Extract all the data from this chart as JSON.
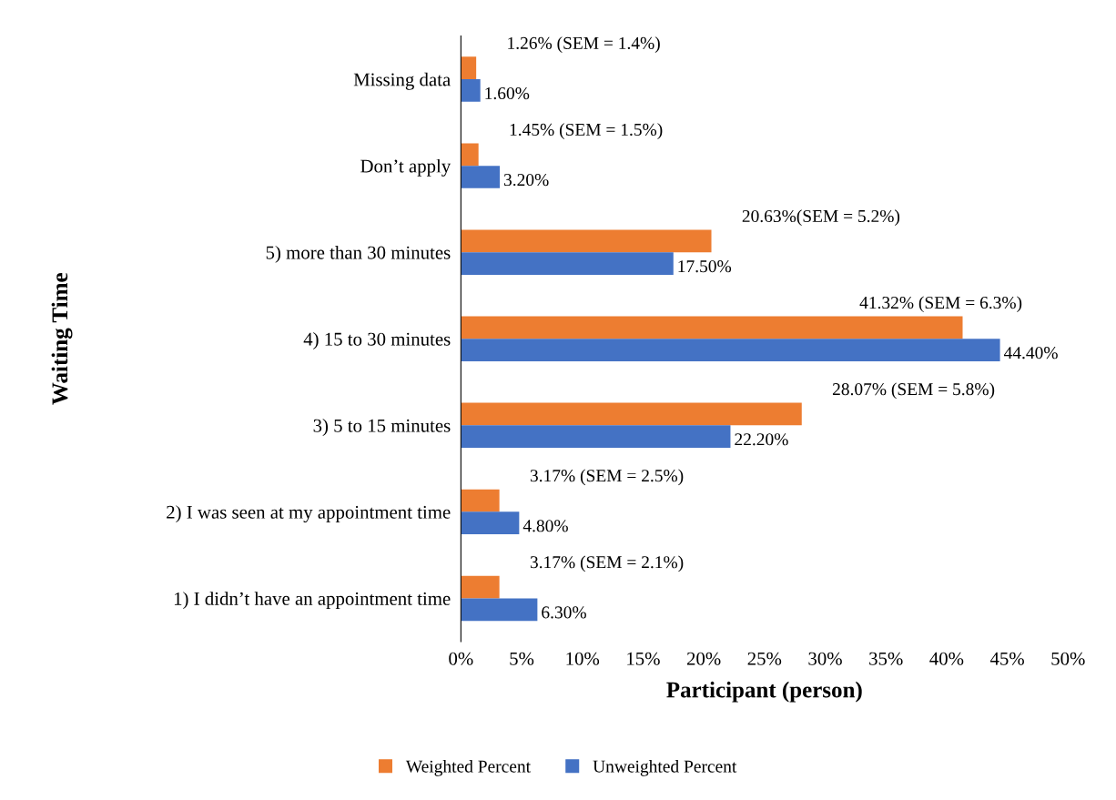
{
  "chart_data": {
    "type": "bar",
    "orientation": "horizontal",
    "xlabel": "Participant (person)",
    "ylabel": "Waiting Time",
    "categories": [
      "Missing data",
      "Don’t apply",
      "5) more than 30 minutes",
      "4) 15 to 30 minutes",
      "3) 5 to 15 minutes",
      "2) I was seen at my appointment time",
      "1) I didn’t have an appointment time"
    ],
    "series": [
      {
        "name": "Weighted Percent",
        "color": "#ed7d31",
        "values": [
          1.26,
          1.45,
          20.63,
          41.32,
          28.07,
          3.17,
          3.17
        ],
        "value_labels": [
          "1.26% (SEM = 1.4%)",
          "1.45% (SEM = 1.5%)",
          "20.63%(SEM = 5.2%)",
          "41.32% (SEM = 6.3%)",
          "28.07% (SEM = 5.8%)",
          "3.17% (SEM = 2.5%)",
          "3.17% (SEM = 2.1%)"
        ]
      },
      {
        "name": "Unweighted Percent",
        "color": "#4472c4",
        "values": [
          1.6,
          3.2,
          17.5,
          44.4,
          22.2,
          4.8,
          6.3
        ],
        "value_labels": [
          "1.60%",
          "3.20%",
          "17.50%",
          "44.40%",
          "22.20%",
          "4.80%",
          "6.30%"
        ]
      }
    ],
    "xlim": [
      0,
      50
    ],
    "xticks": [
      {
        "value": 0,
        "label": "0%"
      },
      {
        "value": 5,
        "label": "5%"
      },
      {
        "value": 10,
        "label": "10%"
      },
      {
        "value": 15,
        "label": "15%"
      },
      {
        "value": 20,
        "label": "20%"
      },
      {
        "value": 25,
        "label": "25%"
      },
      {
        "value": 30,
        "label": "30%"
      },
      {
        "value": 35,
        "label": "35%"
      },
      {
        "value": 40,
        "label": "40%"
      },
      {
        "value": 45,
        "label": "45%"
      },
      {
        "value": 50,
        "label": "50%"
      }
    ],
    "grid": false,
    "legend": "bottom"
  }
}
